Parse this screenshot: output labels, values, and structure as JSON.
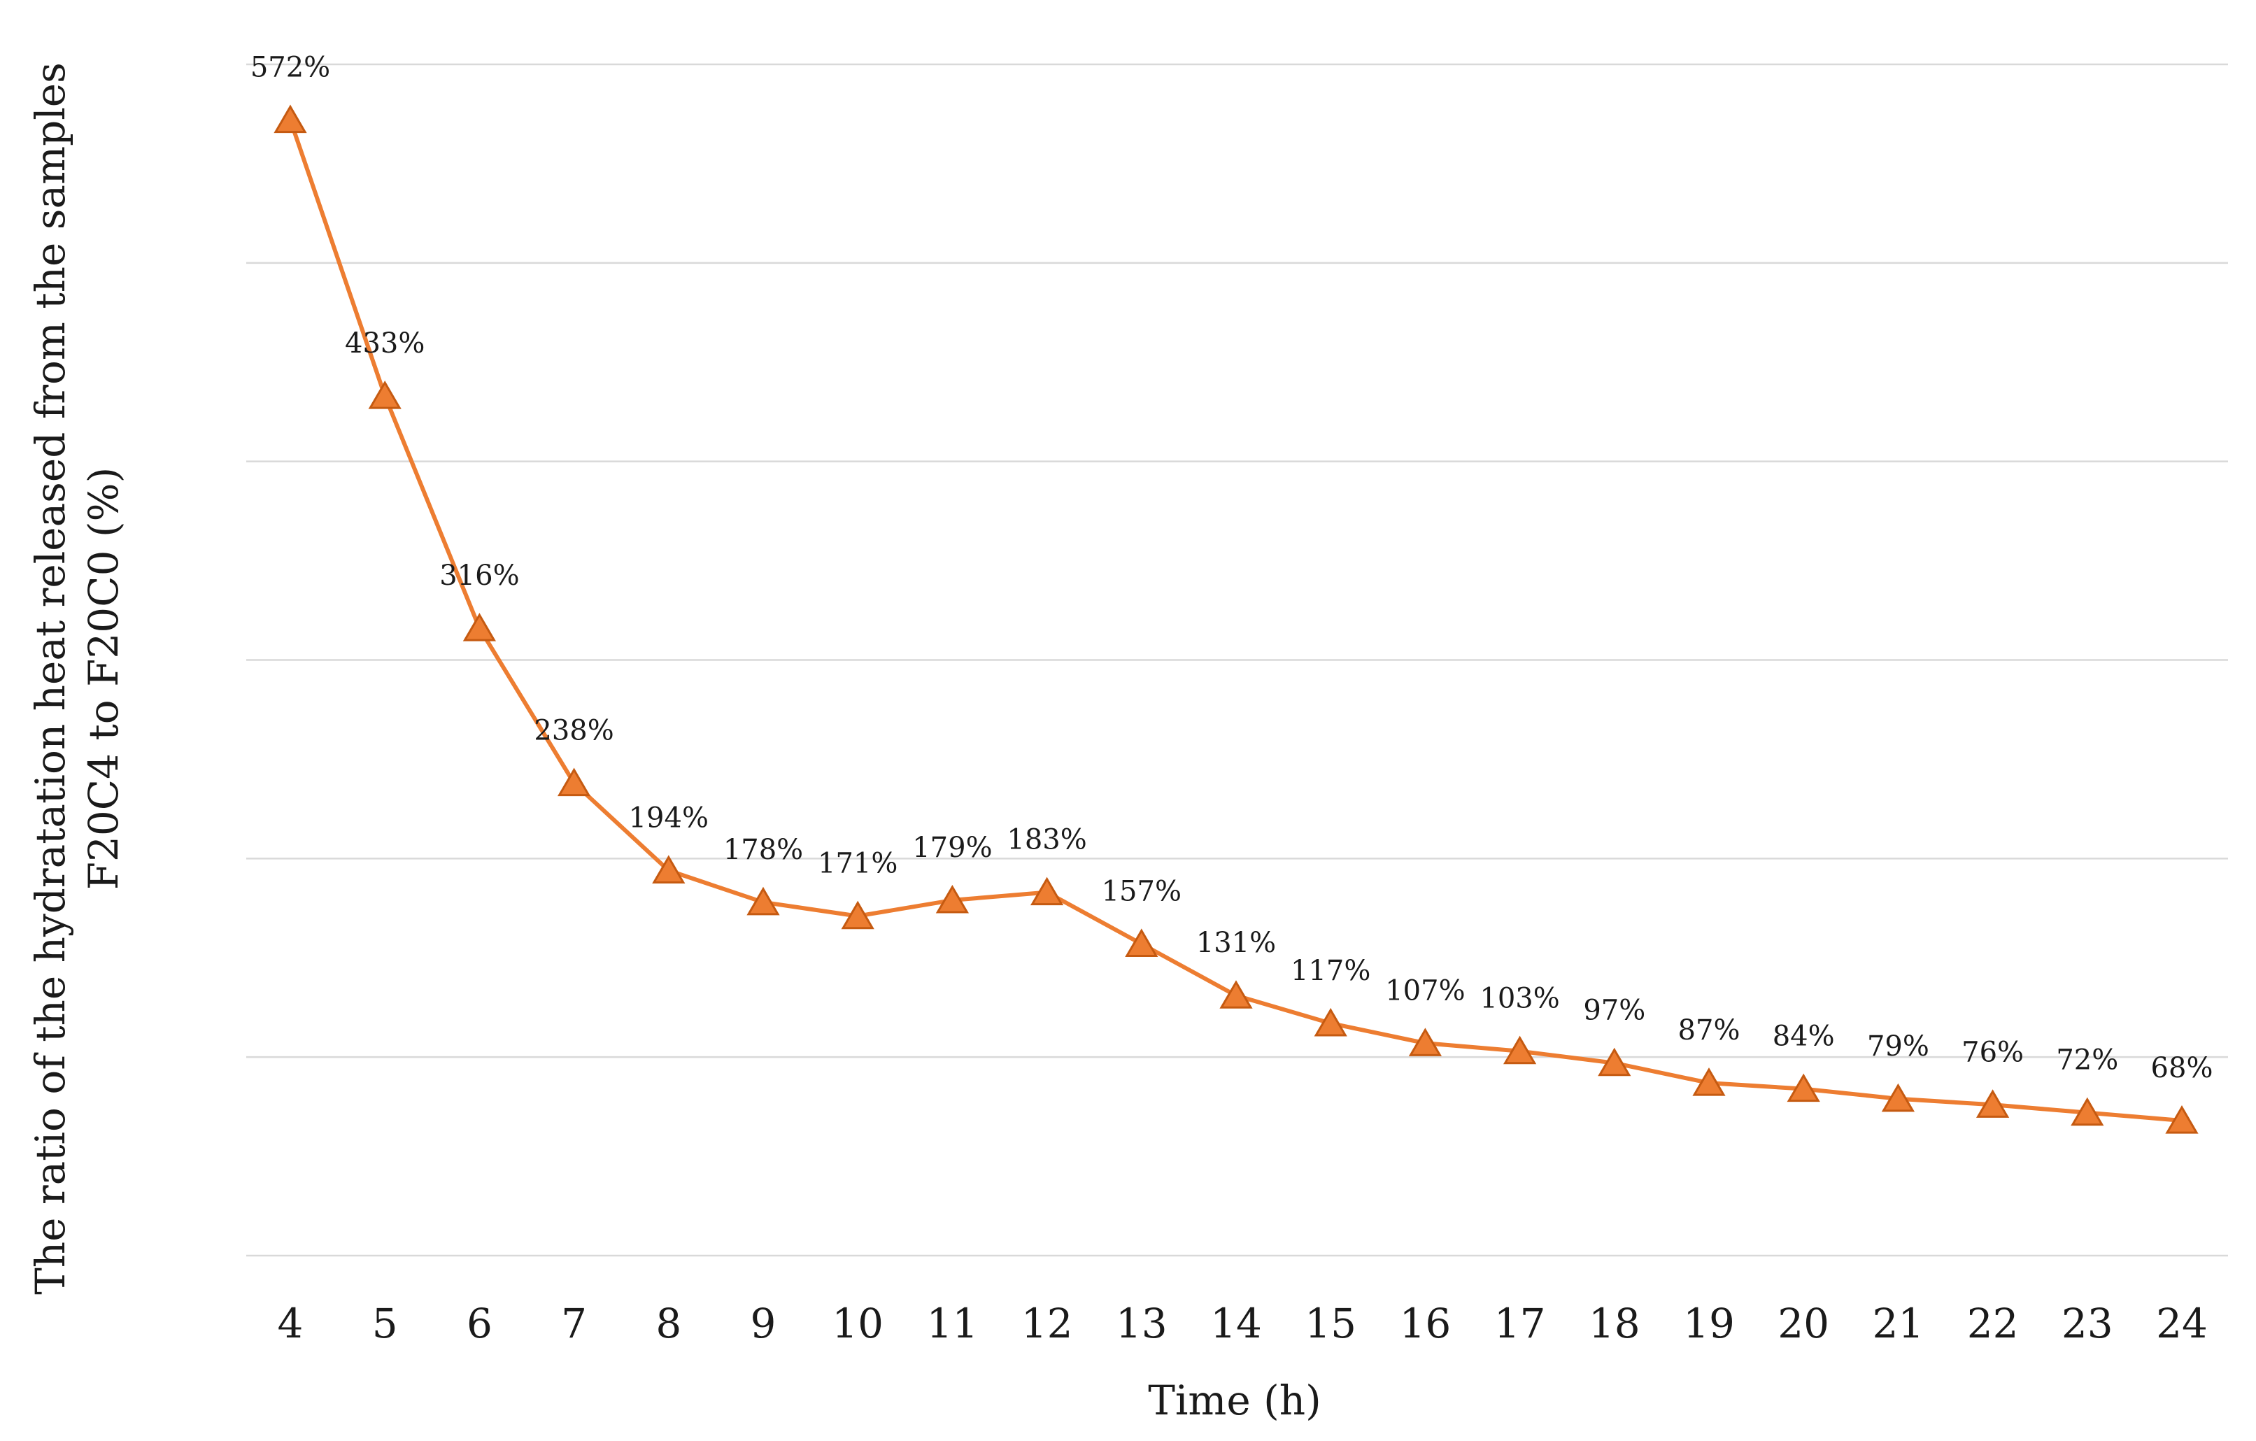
{
  "chart_data": {
    "type": "line",
    "title": "",
    "xlabel": "Time (h)",
    "ylabel_lines": [
      "The ratio of the hydratation heat released from the samples",
      "F20C4 to F20C0 (%)"
    ],
    "x": [
      4,
      5,
      6,
      7,
      8,
      9,
      10,
      11,
      12,
      13,
      14,
      15,
      16,
      17,
      18,
      19,
      20,
      21,
      22,
      23,
      24
    ],
    "series": [
      {
        "name": "F20C4 / F20C0",
        "values": [
          572,
          433,
          316,
          238,
          194,
          178,
          171,
          179,
          183,
          157,
          131,
          117,
          107,
          103,
          97,
          87,
          84,
          79,
          76,
          72,
          68
        ],
        "labels": [
          "572%",
          "433%",
          "316%",
          "238%",
          "194%",
          "178%",
          "171%",
          "179%",
          "183%",
          "157%",
          "131%",
          "117%",
          "107%",
          "103%",
          "97%",
          "87%",
          "84%",
          "79%",
          "76%",
          "72%",
          "68%"
        ]
      }
    ],
    "ylim": [
      0,
      600
    ],
    "yticks": [
      0,
      100,
      200,
      300,
      400,
      500,
      600
    ],
    "y_tick_labels_visible": false,
    "grid": "horizontal",
    "marker": "triangle",
    "color": "#ED7D31",
    "marker_edge_color": "#C55A11",
    "grid_color": "#D9D9D9",
    "legend": "none"
  }
}
